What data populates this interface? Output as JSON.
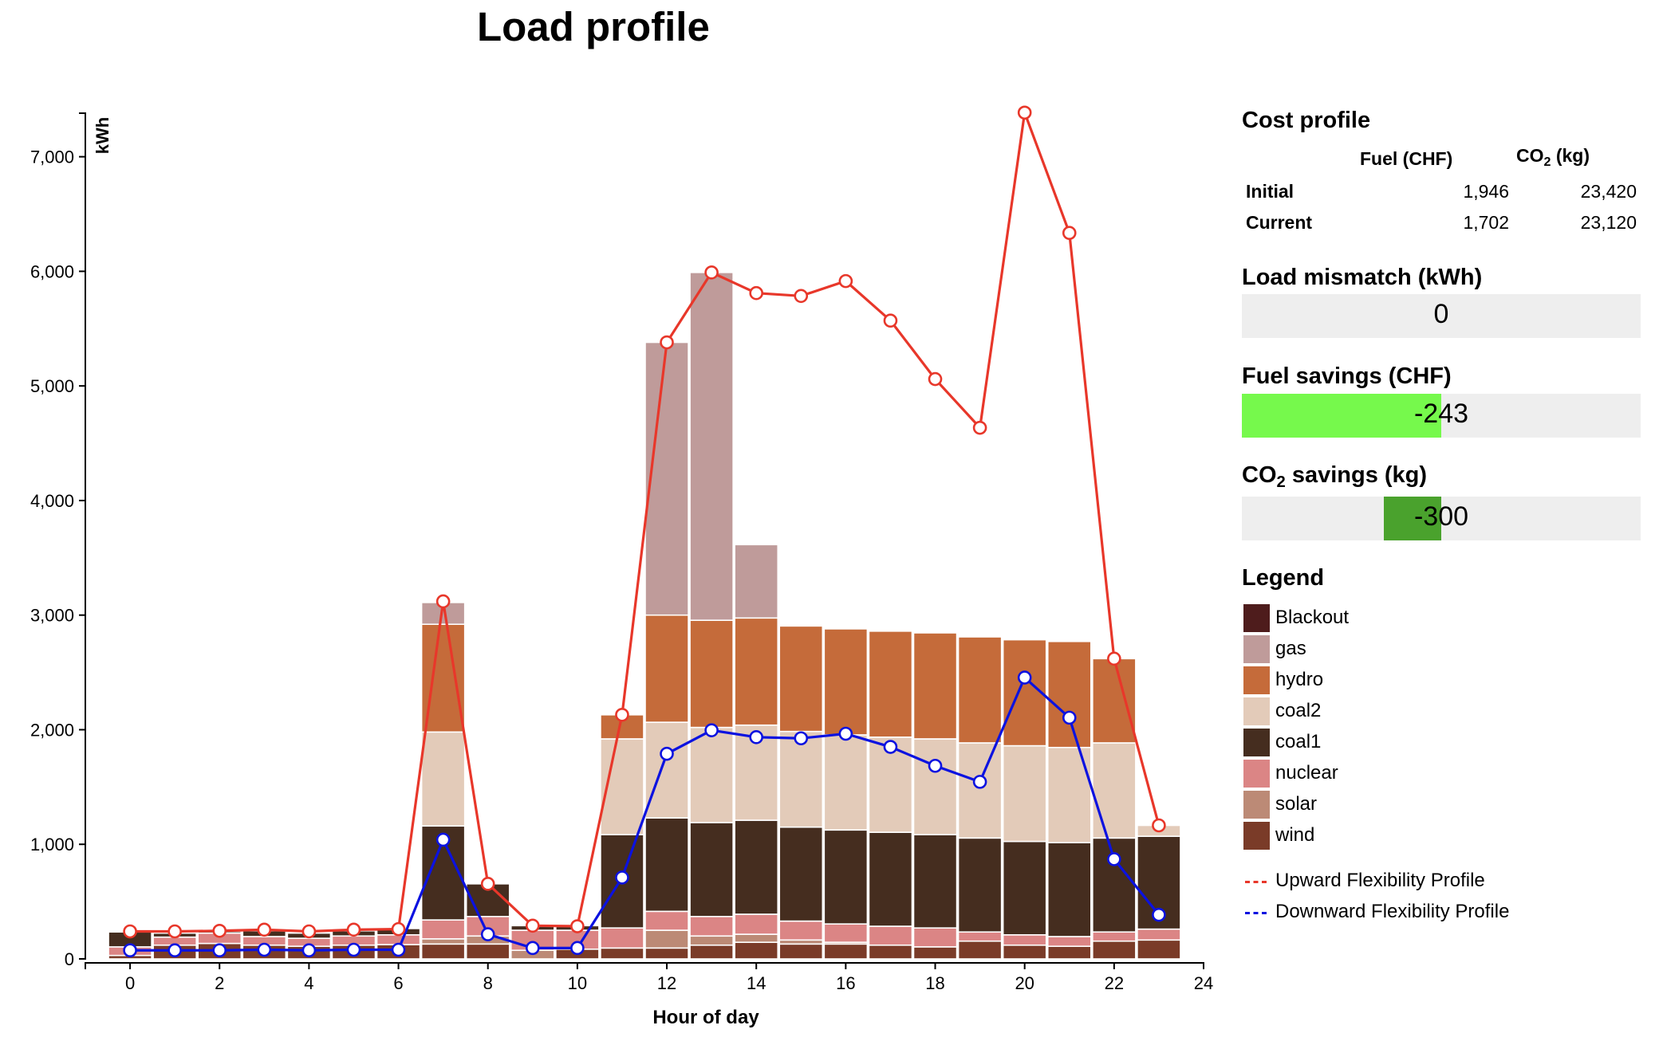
{
  "chart_data": {
    "type": "bar",
    "stacked": true,
    "title": "Load profile",
    "xlabel": "Hour of day",
    "ylabel": "kWh",
    "xlim": [
      -1,
      24
    ],
    "ylim": [
      0,
      7380
    ],
    "x_ticks": [
      "0",
      "2",
      "4",
      "6",
      "8",
      "10",
      "12",
      "14",
      "16",
      "18",
      "20",
      "22",
      "24"
    ],
    "y_ticks": [
      "0",
      "1,000",
      "2,000",
      "3,000",
      "4,000",
      "5,000",
      "6,000",
      "7,000"
    ],
    "categories": [
      0,
      1,
      2,
      3,
      4,
      5,
      6,
      7,
      8,
      9,
      10,
      11,
      12,
      13,
      14,
      15,
      16,
      17,
      18,
      19,
      20,
      21,
      22,
      23
    ],
    "series": [
      {
        "name": "wind",
        "color": "#7a3b28",
        "values": [
          30,
          120,
          135,
          120,
          110,
          120,
          125,
          130,
          130,
          0,
          85,
          95,
          95,
          120,
          145,
          130,
          130,
          120,
          105,
          155,
          120,
          110,
          155,
          165
        ]
      },
      {
        "name": "solar",
        "color": "#bc8a76",
        "values": [
          0,
          0,
          0,
          0,
          0,
          0,
          0,
          45,
          70,
          75,
          0,
          0,
          155,
          80,
          70,
          35,
          15,
          0,
          0,
          0,
          0,
          0,
          0,
          0
        ]
      },
      {
        "name": "nuclear",
        "color": "#db8585",
        "values": [
          75,
          70,
          90,
          75,
          70,
          80,
          85,
          165,
          170,
          175,
          165,
          175,
          165,
          170,
          175,
          165,
          160,
          165,
          165,
          80,
          90,
          85,
          80,
          95
        ]
      },
      {
        "name": "coal1",
        "color": "#452d1f",
        "values": [
          130,
          35,
          15,
          50,
          45,
          45,
          55,
          820,
          285,
          40,
          40,
          815,
          815,
          820,
          820,
          820,
          820,
          820,
          815,
          820,
          815,
          820,
          820,
          810
        ]
      },
      {
        "name": "coal2",
        "color": "#e3cbb9",
        "values": [
          0,
          0,
          0,
          0,
          0,
          0,
          0,
          820,
          0,
          0,
          0,
          835,
          835,
          830,
          830,
          835,
          830,
          830,
          835,
          830,
          835,
          830,
          830,
          95
        ]
      },
      {
        "name": "hydro",
        "color": "#c56b3a",
        "values": [
          0,
          0,
          0,
          0,
          0,
          0,
          0,
          940,
          0,
          0,
          0,
          210,
          935,
          935,
          935,
          920,
          925,
          925,
          925,
          925,
          925,
          925,
          735,
          0
        ]
      },
      {
        "name": "gas",
        "color": "#bf9b9a",
        "values": [
          0,
          0,
          0,
          0,
          0,
          0,
          0,
          190,
          0,
          0,
          0,
          0,
          2380,
          3035,
          640,
          0,
          0,
          0,
          0,
          0,
          0,
          0,
          0,
          0
        ]
      },
      {
        "name": "Blackout",
        "color": "#4e1c1c",
        "values": [
          0,
          0,
          0,
          0,
          0,
          0,
          0,
          0,
          0,
          0,
          0,
          0,
          0,
          0,
          0,
          0,
          0,
          0,
          0,
          0,
          0,
          0,
          0,
          0
        ]
      }
    ],
    "lines": [
      {
        "name": "Upward Flexibility Profile",
        "color": "#e8372a",
        "values": [
          240,
          240,
          245,
          255,
          240,
          255,
          260,
          3120,
          655,
          290,
          285,
          2130,
          5380,
          5990,
          5810,
          5785,
          5915,
          5570,
          5060,
          4635,
          7385,
          6335,
          2620,
          1165
        ]
      },
      {
        "name": "Downward Flexibility Profile",
        "color": "#0b12e0",
        "values": [
          75,
          75,
          75,
          80,
          75,
          80,
          80,
          1040,
          215,
          95,
          95,
          710,
          1790,
          1995,
          1935,
          1925,
          1965,
          1850,
          1685,
          1545,
          2455,
          2105,
          870,
          385
        ]
      }
    ],
    "legend": "right"
  },
  "cost_profile": {
    "heading": "Cost profile",
    "col_fuel": "Fuel (CHF)",
    "col_co2_prefix": "CO",
    "col_co2_sub": "2",
    "col_co2_suffix": " (kg)",
    "rows": [
      {
        "label": "Initial",
        "fuel": "1,946",
        "co2": "23,420"
      },
      {
        "label": "Current",
        "fuel": "1,702",
        "co2": "23,120"
      }
    ]
  },
  "load_mismatch": {
    "heading": "Load mismatch (kWh)",
    "value": "0",
    "fraction": 0
  },
  "fuel_savings": {
    "heading": "Fuel savings (CHF)",
    "value": "-243",
    "fraction": -1.0,
    "color": "#76f94c"
  },
  "co2_savings": {
    "heading_prefix": "CO",
    "heading_sub": "2",
    "heading_suffix": " savings (kg)",
    "value": "-300",
    "fraction": -0.29,
    "color": "#4aa22d"
  },
  "legend": {
    "heading": "Legend",
    "items": [
      {
        "label": "Blackout",
        "color": "#4e1c1c"
      },
      {
        "label": "gas",
        "color": "#bf9b9a"
      },
      {
        "label": "hydro",
        "color": "#c56b3a"
      },
      {
        "label": "coal2",
        "color": "#e3cbb9"
      },
      {
        "label": "coal1",
        "color": "#452d1f"
      },
      {
        "label": "nuclear",
        "color": "#db8585"
      },
      {
        "label": "solar",
        "color": "#bc8a76"
      },
      {
        "label": "wind",
        "color": "#7a3b28"
      }
    ],
    "lines": [
      {
        "label": "Upward Flexibility Profile",
        "color": "#e8372a"
      },
      {
        "label": "Downward Flexibility Profile",
        "color": "#0b12e0"
      }
    ]
  }
}
